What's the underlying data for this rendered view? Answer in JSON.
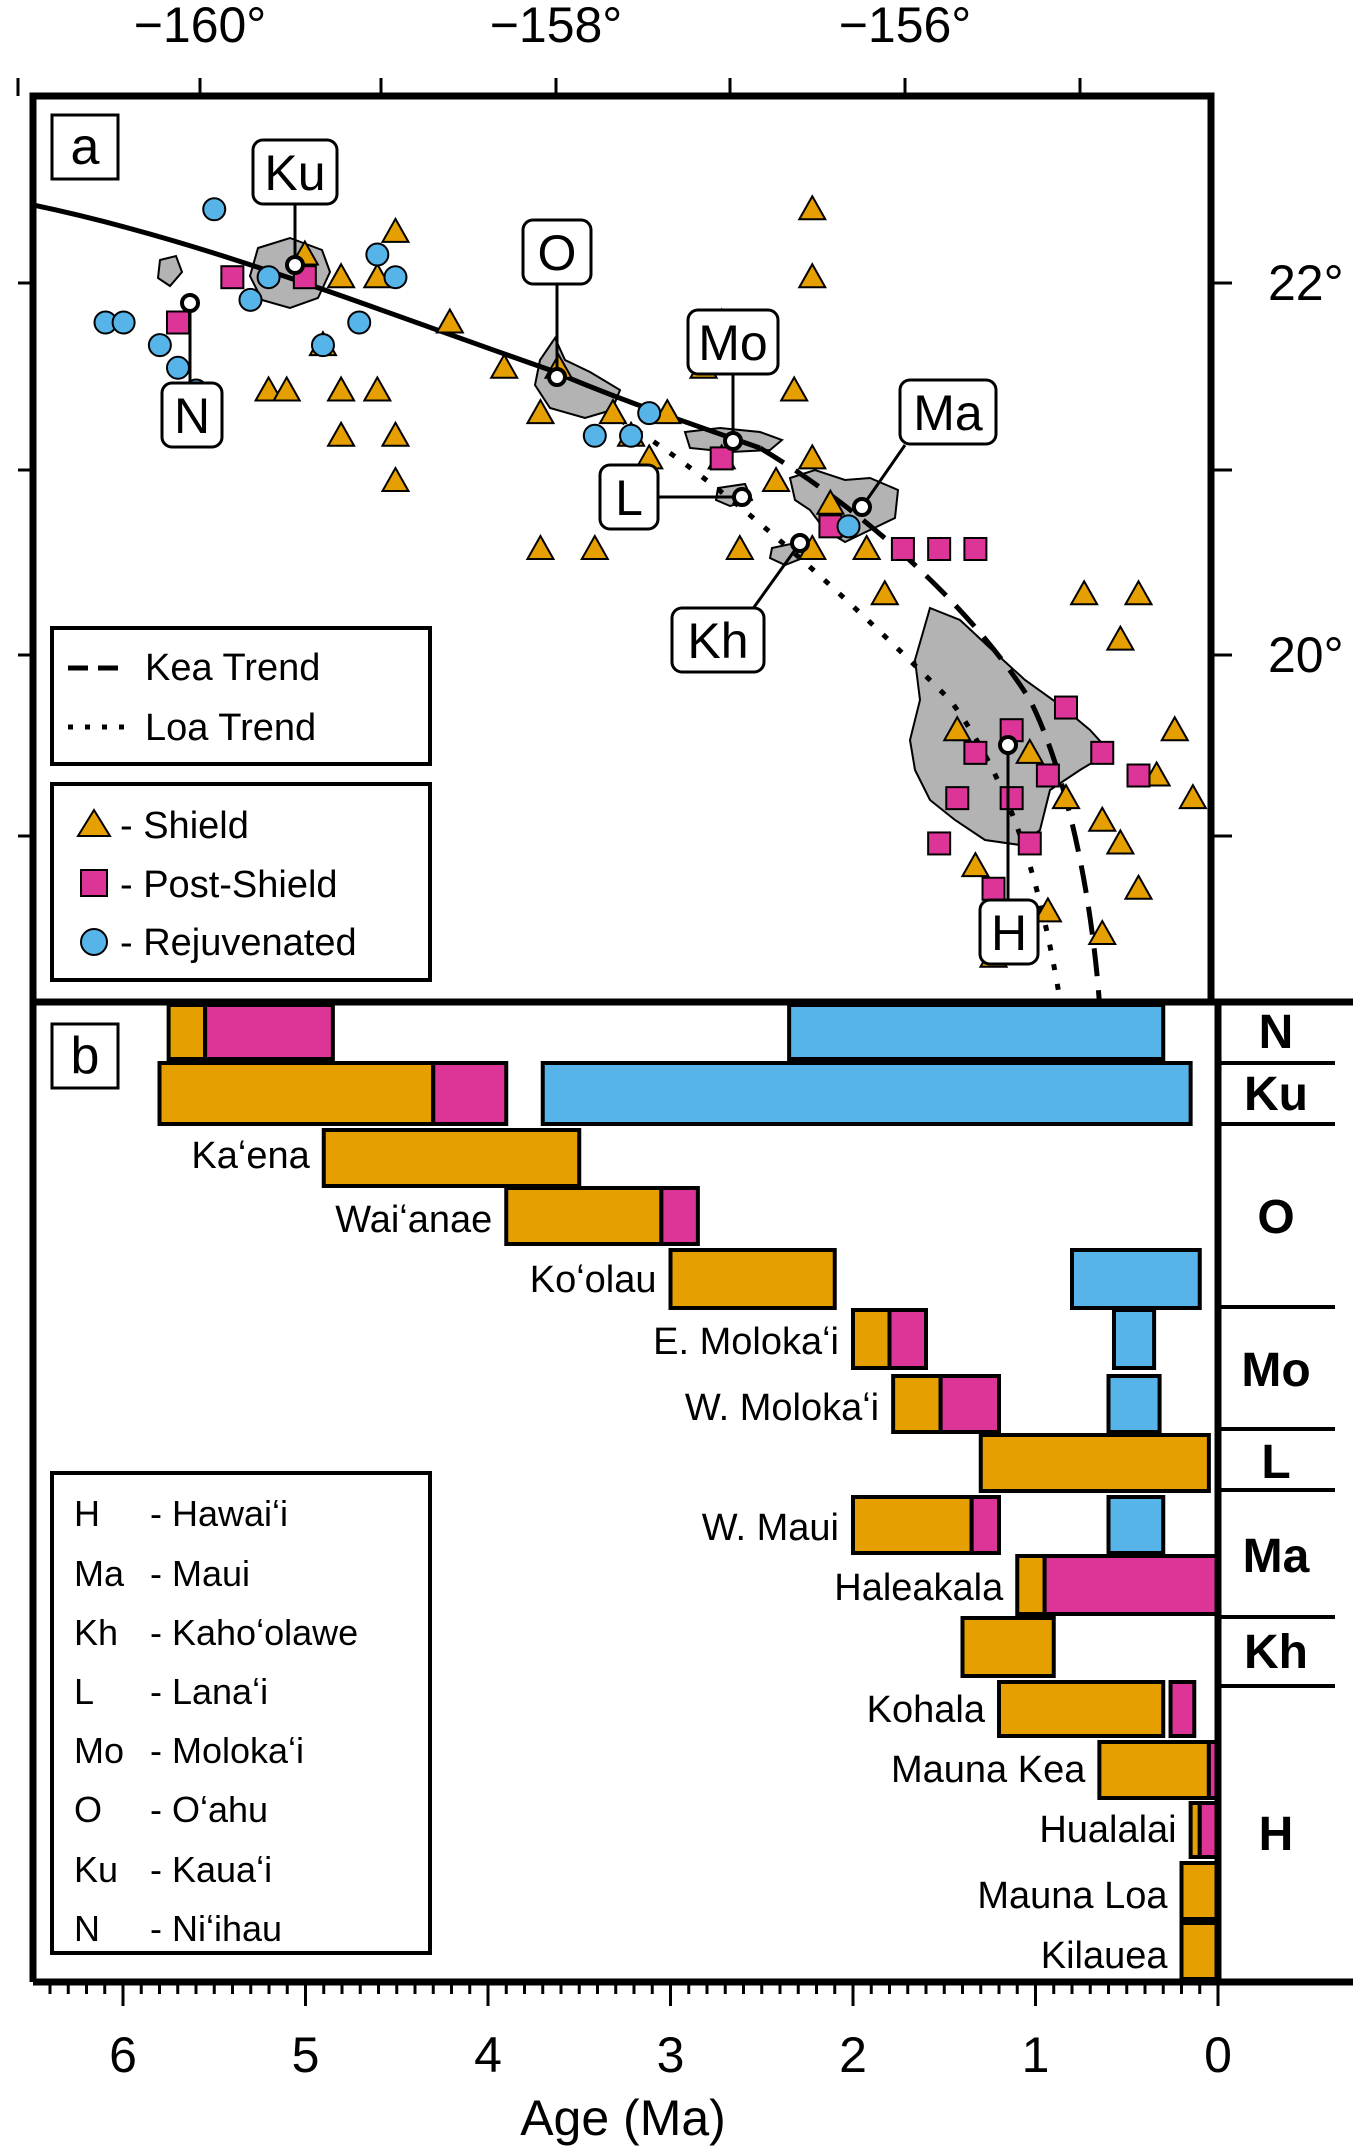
{
  "panel_a": {
    "letter": "a",
    "x_ticks": [
      "−160°",
      "−158°",
      "−156°"
    ],
    "y_ticks": [
      "22°",
      "20°"
    ],
    "island_labels": [
      {
        "id": "ku",
        "text": "Ku"
      },
      {
        "id": "n",
        "text": "N"
      },
      {
        "id": "o",
        "text": "O"
      },
      {
        "id": "mo",
        "text": "Mo"
      },
      {
        "id": "ma",
        "text": "Ma"
      },
      {
        "id": "l",
        "text": "L"
      },
      {
        "id": "kh",
        "text": "Kh"
      },
      {
        "id": "h",
        "text": "H"
      }
    ],
    "trend_legend": [
      {
        "style": "dashed",
        "label": "Kea Trend"
      },
      {
        "style": "dotted",
        "label": "Loa Trend"
      }
    ],
    "stage_legend": [
      {
        "marker": "triangle",
        "label": "- Shield",
        "color": "#e69f00"
      },
      {
        "marker": "square",
        "label": "- Post-Shield",
        "color": "#dd3497"
      },
      {
        "marker": "circle",
        "label": "- Rejuvenated",
        "color": "#56b4e9"
      }
    ]
  },
  "panel_b": {
    "letter": "b",
    "x_label": "Age (Ma)",
    "x_ticks": [
      "6",
      "5",
      "4",
      "3",
      "2",
      "1",
      "0"
    ],
    "abbreviation_legend": [
      {
        "abbr": "H",
        "name": "- Hawaiʻi"
      },
      {
        "abbr": "Ma",
        "name": "- Maui"
      },
      {
        "abbr": "Kh",
        "name": "- Kahoʻolawe"
      },
      {
        "abbr": "L",
        "name": "- Lanaʻi"
      },
      {
        "abbr": "Mo",
        "name": "- Molokaʻi"
      },
      {
        "abbr": "O",
        "name": "- Oʻahu"
      },
      {
        "abbr": "Ku",
        "name": "- Kauaʻi"
      },
      {
        "abbr": "N",
        "name": "- Niʻihau"
      }
    ],
    "group_labels": [
      "N",
      "Ku",
      "O",
      "Mo",
      "L",
      "Ma",
      "Kh",
      "H"
    ],
    "colors": {
      "shield": "#e69f00",
      "postshield": "#dd3497",
      "rejuvenated": "#56b4e9"
    }
  },
  "chart_data": {
    "type": "bar",
    "orientation": "horizontal",
    "xlabel": "Age (Ma)",
    "xlim": [
      6.5,
      0
    ],
    "volcanoes": [
      {
        "name": "",
        "group": "N",
        "shield": [
          5.75,
          5.55
        ],
        "postshield": [
          5.55,
          4.85
        ],
        "rejuvenated": [
          2.35,
          0.3
        ]
      },
      {
        "name": "",
        "group": "Ku",
        "shield": [
          5.8,
          4.3
        ],
        "postshield": [
          4.3,
          3.9
        ],
        "rejuvenated": [
          3.7,
          0.15
        ]
      },
      {
        "name": "Kaʻena",
        "group": "O",
        "shield": [
          4.9,
          3.5
        ]
      },
      {
        "name": "Waiʻanae",
        "group": "O",
        "shield": [
          3.9,
          3.05
        ],
        "postshield": [
          3.05,
          2.85
        ]
      },
      {
        "name": "Koʻolau",
        "group": "O",
        "shield": [
          3.0,
          2.1
        ],
        "rejuvenated": [
          0.8,
          0.1
        ]
      },
      {
        "name": "E. Molokaʻi",
        "group": "Mo",
        "shield": [
          2.0,
          1.8
        ],
        "postshield": [
          1.8,
          1.6
        ],
        "rejuvenated": [
          0.57,
          0.35
        ]
      },
      {
        "name": "W. Molokaʻi",
        "group": "Mo",
        "shield": [
          1.78,
          1.52
        ],
        "postshield": [
          1.52,
          1.2
        ],
        "rejuvenated": [
          0.6,
          0.32
        ]
      },
      {
        "name": "",
        "group": "L",
        "shield": [
          1.3,
          0.05
        ]
      },
      {
        "name": "W. Maui",
        "group": "Ma",
        "shield": [
          2.0,
          1.35
        ],
        "postshield": [
          1.35,
          1.2
        ],
        "rejuvenated": [
          0.6,
          0.3
        ]
      },
      {
        "name": "Haleakala",
        "group": "Ma",
        "shield": [
          1.1,
          0.95
        ],
        "postshield": [
          0.95,
          0.0
        ]
      },
      {
        "name": "",
        "group": "Kh",
        "shield": [
          1.4,
          0.9
        ]
      },
      {
        "name": "Kohala",
        "group": "H",
        "shield": [
          1.2,
          0.3
        ],
        "postshield": [
          0.26,
          0.13
        ]
      },
      {
        "name": "Mauna Kea",
        "group": "H",
        "shield": [
          0.65,
          0.05
        ],
        "postshield": [
          0.05,
          0.0
        ]
      },
      {
        "name": "Hualalai",
        "group": "H",
        "shield": [
          0.15,
          0.1
        ],
        "postshield": [
          0.1,
          0.0
        ]
      },
      {
        "name": "Mauna Loa",
        "group": "H",
        "shield": [
          0.2,
          0.0
        ]
      },
      {
        "name": "Kilauea",
        "group": "H",
        "shield": [
          0.2,
          0.0
        ]
      }
    ],
    "map_xlim": [
      -161.0,
      -154.5
    ],
    "map_ylim": [
      18.8,
      22.8
    ],
    "map_samples": [
      {
        "stage": "shield",
        "points": [
          [
            -159.7,
            21.5
          ],
          [
            -159.6,
            21.5
          ],
          [
            -159.4,
            21.7
          ],
          [
            -159.3,
            21.5
          ],
          [
            -159.3,
            21.3
          ],
          [
            -159.1,
            21.5
          ],
          [
            -159.0,
            21.3
          ],
          [
            -159.0,
            21.1
          ],
          [
            -159.5,
            22.1
          ],
          [
            -159.3,
            22.0
          ],
          [
            -159.1,
            22.0
          ],
          [
            -159.0,
            22.2
          ],
          [
            -158.7,
            21.8
          ],
          [
            -158.4,
            21.6
          ],
          [
            -158.2,
            21.4
          ],
          [
            -158.1,
            21.6
          ],
          [
            -157.8,
            21.4
          ],
          [
            -157.7,
            21.3
          ],
          [
            -157.6,
            21.2
          ],
          [
            -157.5,
            21.4
          ],
          [
            -157.3,
            21.6
          ],
          [
            -157.2,
            21.2
          ],
          [
            -156.9,
            21.1
          ],
          [
            -156.8,
            21.5
          ],
          [
            -156.7,
            21.2
          ],
          [
            -156.7,
            22.0
          ],
          [
            -156.7,
            22.3
          ],
          [
            -157.2,
            21.8
          ],
          [
            -156.6,
            21.0
          ],
          [
            -156.4,
            20.8
          ],
          [
            -156.3,
            20.6
          ],
          [
            -156.7,
            20.8
          ],
          [
            -157.1,
            20.8
          ],
          [
            -158.2,
            20.8
          ],
          [
            -157.9,
            20.8
          ],
          [
            -155.9,
            20.0
          ],
          [
            -155.5,
            19.9
          ],
          [
            -155.3,
            19.7
          ],
          [
            -155.1,
            19.6
          ],
          [
            -155.0,
            19.5
          ],
          [
            -154.8,
            19.8
          ],
          [
            -154.6,
            19.7
          ],
          [
            -154.7,
            20.0
          ],
          [
            -154.9,
            19.3
          ],
          [
            -155.1,
            19.1
          ],
          [
            -155.4,
            19.2
          ],
          [
            -155.8,
            19.4
          ],
          [
            -155.7,
            19.0
          ],
          [
            -155.2,
            20.6
          ],
          [
            -155.0,
            20.4
          ],
          [
            -154.9,
            20.6
          ]
        ]
      },
      {
        "stage": "postshield",
        "points": [
          [
            -160.2,
            21.8
          ],
          [
            -159.9,
            22.0
          ],
          [
            -159.5,
            22.0
          ],
          [
            -157.2,
            21.2
          ],
          [
            -156.6,
            20.9
          ],
          [
            -156.2,
            20.8
          ],
          [
            -156.0,
            20.8
          ],
          [
            -155.8,
            20.8
          ],
          [
            -155.8,
            19.9
          ],
          [
            -155.6,
            20.0
          ],
          [
            -155.4,
            19.8
          ],
          [
            -155.3,
            20.1
          ],
          [
            -155.1,
            19.9
          ],
          [
            -154.9,
            19.8
          ],
          [
            -155.6,
            19.7
          ],
          [
            -155.9,
            19.7
          ],
          [
            -156.0,
            19.5
          ],
          [
            -155.7,
            19.3
          ],
          [
            -155.5,
            19.5
          ]
        ]
      },
      {
        "stage": "rejuvenated",
        "points": [
          [
            -160.6,
            21.8
          ],
          [
            -160.5,
            21.8
          ],
          [
            -160.3,
            21.7
          ],
          [
            -160.2,
            21.6
          ],
          [
            -160.1,
            21.5
          ],
          [
            -159.8,
            21.9
          ],
          [
            -159.7,
            22.0
          ],
          [
            -159.4,
            21.7
          ],
          [
            -159.2,
            21.8
          ],
          [
            -159.1,
            22.1
          ],
          [
            -159.0,
            22.0
          ],
          [
            -160.0,
            22.3
          ],
          [
            -157.9,
            21.3
          ],
          [
            -157.7,
            21.3
          ],
          [
            -157.6,
            21.4
          ],
          [
            -156.5,
            20.9
          ]
        ]
      }
    ]
  }
}
